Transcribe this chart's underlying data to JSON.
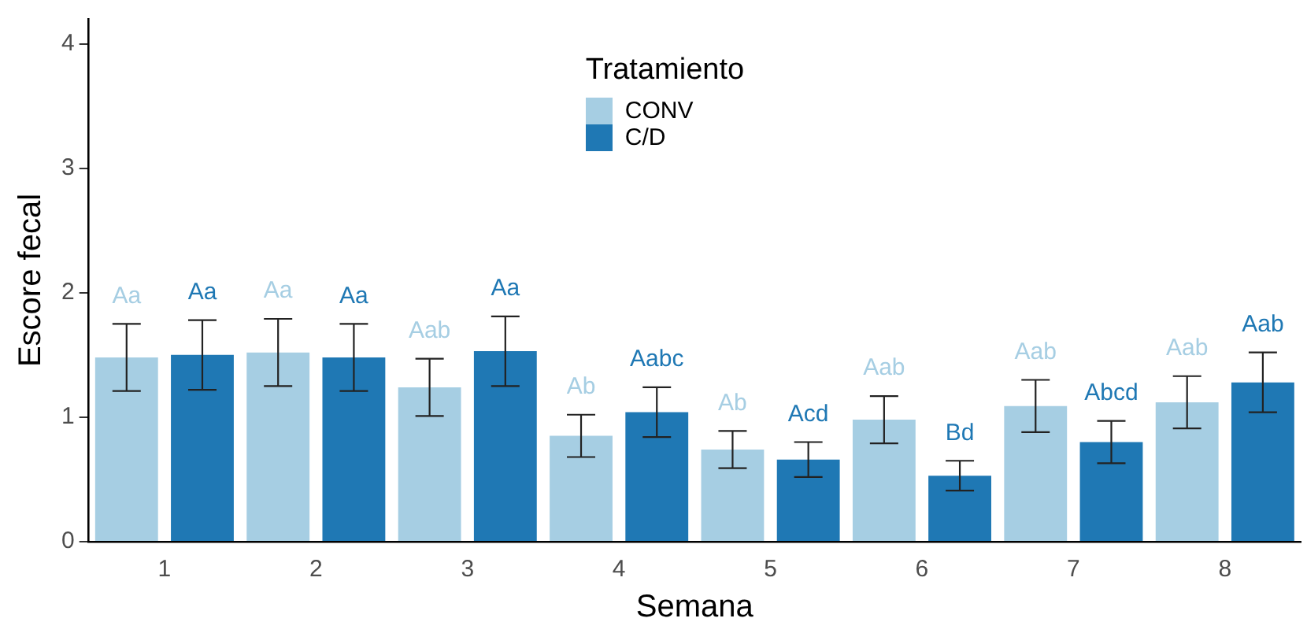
{
  "chart_data": {
    "type": "bar",
    "xlabel": "Semana",
    "ylabel": "Escore fecal",
    "legend_title": "Tratamiento",
    "legend": "top",
    "grid": false,
    "categories": [
      "1",
      "2",
      "3",
      "4",
      "5",
      "6",
      "7",
      "8"
    ],
    "ylim": [
      0,
      4.2
    ],
    "yticks": [
      0,
      1,
      2,
      3,
      4
    ],
    "series": [
      {
        "name": "CONV",
        "color": "#a6cee3",
        "values": [
          1.48,
          1.52,
          1.24,
          0.85,
          0.74,
          0.98,
          1.09,
          1.12
        ],
        "errors": [
          0.27,
          0.27,
          0.23,
          0.17,
          0.15,
          0.19,
          0.21,
          0.21
        ],
        "value_labels": [
          "Aa",
          "Aa",
          "Aab",
          "Ab",
          "Ab",
          "Aab",
          "Aab",
          "Aab"
        ]
      },
      {
        "name": "C/D",
        "color": "#1f78b4",
        "values": [
          1.5,
          1.48,
          1.53,
          1.04,
          0.66,
          0.53,
          0.8,
          1.28
        ],
        "errors": [
          0.28,
          0.27,
          0.28,
          0.2,
          0.14,
          0.12,
          0.17,
          0.24
        ],
        "value_labels": [
          "Aa",
          "Aa",
          "Aa",
          "Aabc",
          "Acd",
          "Bd",
          "Abcd",
          "Aab"
        ]
      }
    ]
  }
}
